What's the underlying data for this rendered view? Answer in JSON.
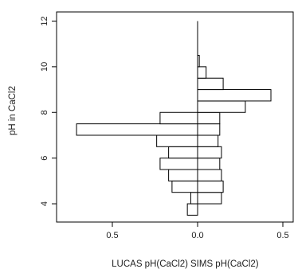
{
  "chart_data": {
    "type": "bar",
    "orientation": "horizontal",
    "layout": "back-to-back",
    "ylabel": "pH in CaCl2",
    "xlabel_left": "LUCAS pH(CaCl2)",
    "xlabel_right": "SIMS pH(CaCl2)",
    "ylim": [
      3.2,
      12.4
    ],
    "xlim_left": [
      0.8,
      0
    ],
    "xlim_right": [
      0,
      0.55
    ],
    "bin_width": 0.5,
    "x_ticks": [
      {
        "value": -0.5,
        "label": "0.5"
      },
      {
        "value": 0.0,
        "label": "0.0"
      },
      {
        "value": 0.5,
        "label": "0.5"
      }
    ],
    "y_ticks": [
      {
        "value": 4,
        "label": "4"
      },
      {
        "value": 6,
        "label": "6"
      },
      {
        "value": 8,
        "label": "8"
      },
      {
        "value": 10,
        "label": "10"
      },
      {
        "value": 12,
        "label": "12"
      }
    ],
    "series": [
      {
        "name": "LUCAS pH(CaCl2)",
        "side": "left",
        "bins": [
          {
            "start": 3.5,
            "end": 4.0,
            "value": 0.06
          },
          {
            "start": 4.0,
            "end": 4.5,
            "value": 0.04
          },
          {
            "start": 4.5,
            "end": 5.0,
            "value": 0.15
          },
          {
            "start": 5.0,
            "end": 5.5,
            "value": 0.17
          },
          {
            "start": 5.5,
            "end": 6.0,
            "value": 0.22
          },
          {
            "start": 6.0,
            "end": 6.5,
            "value": 0.17
          },
          {
            "start": 6.5,
            "end": 7.0,
            "value": 0.24
          },
          {
            "start": 7.0,
            "end": 7.5,
            "value": 0.71
          },
          {
            "start": 7.5,
            "end": 8.0,
            "value": 0.22
          },
          {
            "start": 8.0,
            "end": 8.5,
            "value": 0.0
          },
          {
            "start": 8.5,
            "end": 9.0,
            "value": 0.0
          },
          {
            "start": 9.0,
            "end": 9.5,
            "value": 0.0
          },
          {
            "start": 9.5,
            "end": 10.0,
            "value": 0.0
          },
          {
            "start": 10.0,
            "end": 10.5,
            "value": 0.0
          }
        ]
      },
      {
        "name": "SIMS pH(CaCl2)",
        "side": "right",
        "bins": [
          {
            "start": 3.5,
            "end": 4.0,
            "value": 0.0
          },
          {
            "start": 4.0,
            "end": 4.5,
            "value": 0.14
          },
          {
            "start": 4.5,
            "end": 5.0,
            "value": 0.15
          },
          {
            "start": 5.0,
            "end": 5.5,
            "value": 0.14
          },
          {
            "start": 5.5,
            "end": 6.0,
            "value": 0.13
          },
          {
            "start": 6.0,
            "end": 6.5,
            "value": 0.14
          },
          {
            "start": 6.5,
            "end": 7.0,
            "value": 0.12
          },
          {
            "start": 7.0,
            "end": 7.5,
            "value": 0.13
          },
          {
            "start": 7.5,
            "end": 8.0,
            "value": 0.13
          },
          {
            "start": 8.0,
            "end": 8.5,
            "value": 0.28
          },
          {
            "start": 8.5,
            "end": 9.0,
            "value": 0.43
          },
          {
            "start": 9.0,
            "end": 9.5,
            "value": 0.15
          },
          {
            "start": 9.5,
            "end": 10.0,
            "value": 0.05
          },
          {
            "start": 10.0,
            "end": 10.5,
            "value": 0.01
          }
        ]
      }
    ],
    "center_line": {
      "from": 3.5,
      "to": 12.0
    },
    "grid": false,
    "colors": {
      "bar_fill": "#ffffff",
      "bar_stroke": "#000000",
      "axis": "#000000"
    }
  }
}
